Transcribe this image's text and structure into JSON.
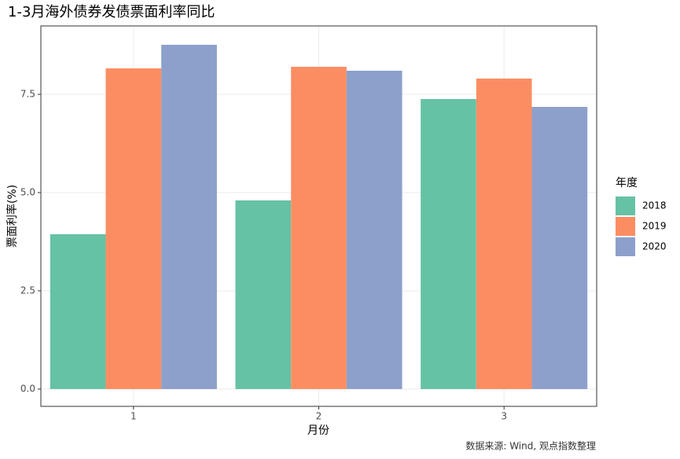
{
  "chart_data": {
    "type": "bar",
    "title": "1-3月海外债券发债票面利率同比",
    "x_label": "月份",
    "y_label": "票面利率(%)",
    "caption": "数据来源: Wind, 观点指数整理",
    "legend_title": "年度",
    "categories": [
      "1",
      "2",
      "3"
    ],
    "series": [
      {
        "name": "2018",
        "color": "#66c2a5",
        "values": [
          3.94,
          4.8,
          7.38
        ]
      },
      {
        "name": "2019",
        "color": "#fc8d62",
        "values": [
          8.16,
          8.2,
          7.9
        ]
      },
      {
        "name": "2020",
        "color": "#8da0cb",
        "values": [
          8.76,
          8.1,
          7.18
        ]
      }
    ],
    "ylim": [
      -0.44,
      9.24
    ],
    "yticks": [
      {
        "value": 0,
        "label": "0.0"
      },
      2.5,
      {
        "value": 5,
        "label": "5.0"
      },
      7.5
    ],
    "grid": true
  }
}
